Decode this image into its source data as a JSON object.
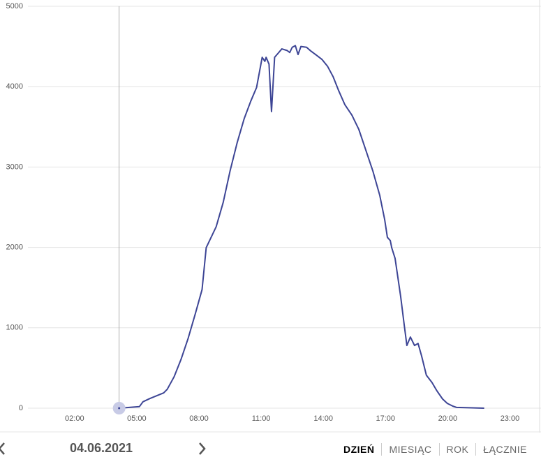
{
  "chart_data": {
    "type": "line",
    "x": [
      4.15,
      5.13,
      5.3,
      5.63,
      6.3,
      6.47,
      6.8,
      7.14,
      7.48,
      7.82,
      8.15,
      8.35,
      8.83,
      9.17,
      9.5,
      9.84,
      10.18,
      10.5,
      10.78,
      11.05,
      11.18,
      11.24,
      11.38,
      11.5,
      11.65,
      11.85,
      12.0,
      12.25,
      12.38,
      12.5,
      12.65,
      12.78,
      12.92,
      13.19,
      13.39,
      13.7,
      13.93,
      14.2,
      14.47,
      14.74,
      15.04,
      15.38,
      15.71,
      16.05,
      16.39,
      16.72,
      16.96,
      17.09,
      17.23,
      17.3,
      17.46,
      17.56,
      17.73,
      17.9,
      18.03,
      18.2,
      18.4,
      18.57,
      18.74,
      18.97,
      19.24,
      19.48,
      19.75,
      19.98,
      20.25,
      20.42,
      21.76
    ],
    "series": [
      {
        "color": "#3d4595",
        "values": [
          0,
          20,
          80,
          120,
          190,
          235,
          390,
          610,
          870,
          1170,
          1475,
          1997,
          2257,
          2560,
          2950,
          3300,
          3600,
          3820,
          3990,
          4365,
          4315,
          4365,
          4280,
          3690,
          4365,
          4425,
          4470,
          4450,
          4425,
          4490,
          4510,
          4400,
          4500,
          4490,
          4445,
          4385,
          4340,
          4255,
          4125,
          3950,
          3775,
          3645,
          3470,
          3210,
          2950,
          2650,
          2345,
          2125,
          2085,
          1995,
          1865,
          1690,
          1390,
          1040,
          780,
          885,
          780,
          805,
          650,
          410,
          320,
          215,
          115,
          60,
          25,
          10,
          0
        ]
      }
    ],
    "xlim": [
      -0.25,
      24.5
    ],
    "xticks": [
      {
        "value": 2,
        "label": "02:00"
      },
      {
        "value": 5,
        "label": "05:00"
      },
      {
        "value": 8,
        "label": "08:00"
      },
      {
        "value": 11,
        "label": "11:00"
      },
      {
        "value": 14,
        "label": "14:00"
      },
      {
        "value": 17,
        "label": "17:00"
      },
      {
        "value": 20,
        "label": "20:00"
      },
      {
        "value": 23,
        "label": "23:00"
      }
    ],
    "ylim": [
      0,
      5000
    ],
    "yticks": [
      0,
      1000,
      2000,
      3000,
      4000,
      5000
    ],
    "grid": true,
    "cursor": {
      "x": 4.15,
      "value": 0
    }
  },
  "navigation": {
    "date": "04.06.2021",
    "tabs": [
      "DZIEŃ",
      "MIESIĄC",
      "ROK",
      "ŁĄCZNIE"
    ],
    "active_tab": 0
  }
}
